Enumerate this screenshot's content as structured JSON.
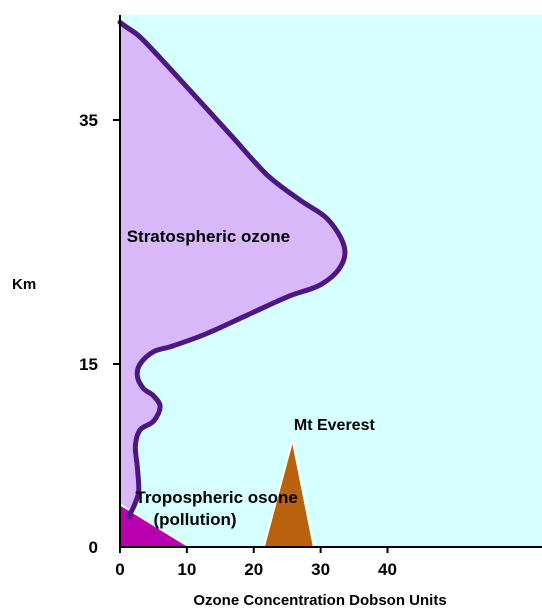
{
  "chart_data": {
    "type": "area",
    "xlabel": "Ozone Concentration Dobson Units",
    "ylabel": "Km",
    "xlim": [
      0,
      40
    ],
    "ylim": [
      0,
      43
    ],
    "x_ticks": [
      0,
      10,
      20,
      30,
      40
    ],
    "y_ticks": [
      0,
      15,
      35
    ],
    "grid": false,
    "colors": {
      "plot_background": "#d6ffff",
      "stratospheric_fill": "#d8b8f8",
      "profile_line": "#4b1785",
      "tropospheric_fill": "#b800b0",
      "everest_fill": "#b8620e"
    },
    "series": [
      {
        "name": "Stratospheric ozone",
        "x": [
          0.0,
          1.0,
          3.0,
          7.0,
          12.0,
          17.0,
          22.0,
          27.0,
          31.0,
          33.5,
          33.0,
          30.0,
          25.0,
          19.0,
          13.0,
          8.0,
          5.0,
          3.0,
          2.6,
          3.5,
          5.0,
          6.0,
          5.0,
          3.0,
          2.3,
          2.6,
          2.8,
          2.2,
          1.6,
          1.5
        ],
        "y": [
          43.0,
          42.6,
          41.8,
          39.5,
          36.5,
          33.5,
          30.5,
          28.4,
          26.9,
          24.7,
          23.0,
          21.5,
          20.5,
          19.0,
          17.5,
          16.5,
          16.0,
          15.0,
          14.0,
          13.0,
          12.4,
          11.5,
          10.3,
          9.6,
          8.3,
          6.5,
          4.6,
          3.5,
          2.8,
          2.5
        ]
      },
      {
        "name": "Tropospheric osone (pollution)",
        "x": [
          0.0,
          10.4,
          0.0
        ],
        "y": [
          0.0,
          0.0,
          3.5
        ]
      }
    ],
    "annotations": [
      {
        "text": "Stratospheric ozone",
        "x": 1.0,
        "y": 25.0
      },
      {
        "text": "Tropospheric osone",
        "x": 2.3,
        "y": 3.6
      },
      {
        "text": "(pollution)",
        "x": 5.0,
        "y": 1.8
      },
      {
        "text": "Mt Everest",
        "x": 26.0,
        "y": 9.6
      }
    ],
    "everest": {
      "label": "Mt Everest",
      "base_left": 21.5,
      "base_right": 29.0,
      "peak_x": 25.8,
      "peak_y": 8.8
    }
  }
}
